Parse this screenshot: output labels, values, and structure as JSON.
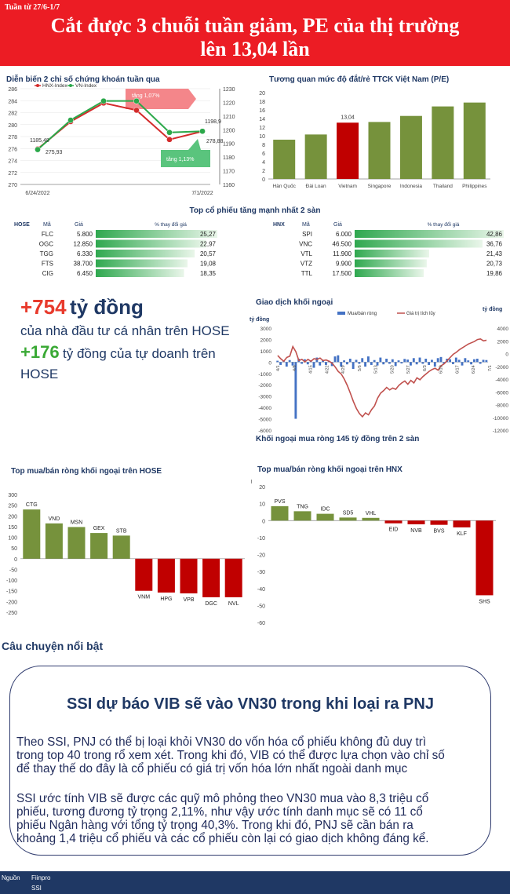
{
  "header": {
    "week": "Tuần từ 27/6-1/7",
    "title_line1": "Cắt được 3 chuỗi tuần giảm, PE của thị trường",
    "title_line2": "lên 13,04 lần"
  },
  "chart_data": [
    {
      "id": "index",
      "type": "line",
      "title": "Diễn biến 2 chỉ số chứng khoán tuần qua",
      "x": [
        "6/24/2022",
        "",
        "",
        "",
        "",
        "7/1/2022"
      ],
      "x_tick_labels": [
        "6/24/2022",
        "7/1/2022"
      ],
      "legend": [
        "HNX-Index",
        "VN-Index"
      ],
      "series": [
        {
          "name": "HNX-Index",
          "axis": "left",
          "color": "#d42b2b",
          "values": [
            275.93,
            280.5,
            283.6,
            282.4,
            277.5,
            278.88
          ]
        },
        {
          "name": "VN-Index",
          "axis": "right",
          "color": "#2ba84a",
          "values": [
            1185.48,
            1207,
            1221,
            1221,
            1198,
            1198.9
          ]
        }
      ],
      "left_ylim": [
        270,
        286
      ],
      "left_ticks": [
        "270",
        "272",
        "274",
        "276",
        "278",
        "280",
        "282",
        "284",
        "286"
      ],
      "right_ylim": [
        1160,
        1230
      ],
      "right_ticks": [
        "1160",
        "1170",
        "1180",
        "1190",
        "1200",
        "1210",
        "1220",
        "1230"
      ],
      "labels": {
        "vn_start": "1185,48",
        "hnx_start": "275,93",
        "vn_end": "1198,9",
        "hnx_end": "278,88"
      },
      "annotations": {
        "hnx": "tăng 1,07%",
        "vn": "tăng 1,13%"
      }
    },
    {
      "id": "pe",
      "type": "bar",
      "title": "Tương quan mức độ đắt/rẻ TTCK Việt Nam (P/E)",
      "categories": [
        "Hàn Quốc",
        "Đài Loan",
        "Vietnam",
        "Singapore",
        "Indonesia",
        "Thailand",
        "Philippines"
      ],
      "values": [
        9.1,
        10.3,
        13.04,
        13.2,
        14.6,
        16.8,
        17.7
      ],
      "highlight": "Vietnam",
      "value_label": "13,04",
      "ylim": [
        0,
        20
      ],
      "ticks": [
        "0",
        "2",
        "4",
        "6",
        "8",
        "10",
        "12",
        "14",
        "16",
        "18",
        "20"
      ],
      "colors": {
        "bar": "#76923c",
        "highlight": "#c00000"
      }
    },
    {
      "id": "foreign",
      "type": "bar",
      "title": "Giao dịch khối ngoại",
      "ylabel": "tỷ đồng",
      "y2label": "tỷ đồng",
      "legend": [
        "Mua/bán ròng",
        "Giá trị tích lũy"
      ],
      "ylim": [
        -6000,
        3000
      ],
      "ticks": [
        "3000",
        "2000",
        "1000",
        "0",
        "-1000",
        "-2000",
        "-3000",
        "-4000",
        "-5000",
        "-6000"
      ],
      "y2lim": [
        -12000,
        4000
      ],
      "ticks2": [
        "4000",
        "2000",
        "0",
        "-2000",
        "-4000",
        "-6000",
        "-8000",
        "-10000",
        "-12000"
      ],
      "date_labels": [
        "4/1",
        "4/8",
        "4/15",
        "4/22",
        "4/29",
        "5/6",
        "5/13",
        "5/20",
        "5/27",
        "6/3",
        "6/10",
        "6/17",
        "6/24",
        "7/1"
      ],
      "net": [
        120,
        -250,
        90,
        -400,
        180,
        -300,
        -5000,
        300,
        -150,
        250,
        -200,
        150,
        -500,
        400,
        -300,
        200,
        -250,
        120,
        -350,
        500,
        600,
        -400,
        150,
        -200,
        300,
        -600,
        200,
        -150,
        350,
        -400,
        500,
        -250,
        180,
        -300,
        400,
        -200,
        300,
        -150,
        250,
        -350,
        150,
        -120,
        280,
        220,
        -300,
        350,
        -200,
        400,
        -150,
        300,
        -250,
        200,
        -400,
        350,
        450,
        -150,
        300,
        250,
        -180,
        400,
        200,
        -300,
        350,
        150,
        -200,
        250,
        300,
        -150,
        200,
        180
      ],
      "cumulative": [
        -300,
        -800,
        -1200,
        -600,
        -400,
        1100,
        300,
        -1100,
        -900,
        -1300,
        -900,
        -1200,
        -800,
        -900,
        -700,
        -1100,
        -1000,
        -1200,
        -1500,
        -2100,
        -2800,
        -3200,
        -4000,
        -5000,
        -6200,
        -7500,
        -8600,
        -9400,
        -9900,
        -9300,
        -9600,
        -8800,
        -8200,
        -7000,
        -6200,
        -5800,
        -5300,
        -5700,
        -5400,
        -5600,
        -5000,
        -4600,
        -4300,
        -4800,
        -4200,
        -4600,
        -3800,
        -4100,
        -3600,
        -3200,
        -2800,
        -2500,
        -2300,
        -2600,
        -1900,
        -1600,
        -1100,
        -600,
        -100,
        200,
        600,
        900,
        1200,
        1500,
        1700,
        1900,
        2200,
        2300,
        2000,
        2100
      ],
      "subtitle": "Khối ngoại mua ròng 145 tỷ đồng trên 2 sàn"
    },
    {
      "id": "hose-foreign",
      "type": "bar",
      "title": "Top mua/bán ròng khối ngoại trên HOSE",
      "categories": [
        "CTG",
        "VND",
        "MSN",
        "GEX",
        "STB",
        "VNM",
        "HPG",
        "VPB",
        "DGC",
        "NVL"
      ],
      "values": [
        230,
        165,
        148,
        120,
        108,
        -150,
        -158,
        -162,
        -180,
        -180
      ],
      "ylim": [
        -250,
        300
      ],
      "ticks": [
        "300",
        "250",
        "200",
        "150",
        "100",
        "50",
        "0",
        "-50",
        "-100",
        "-150",
        "-200",
        "-250"
      ],
      "colors": {
        "positive": "#76923c",
        "negative": "#c00000"
      }
    },
    {
      "id": "hnx-foreign",
      "type": "bar",
      "title": "Top mua/bán ròng khối ngoại trên HNX",
      "ylabel": "tỷ đồng",
      "categories": [
        "PVS",
        "TNG",
        "IDC",
        "SD5",
        "VHL",
        "EID",
        "NVB",
        "BVS",
        "KLF",
        "SHS"
      ],
      "values": [
        8.5,
        5.5,
        4,
        1.8,
        1.6,
        -1.6,
        -2.2,
        -2.5,
        -4,
        -44
      ],
      "ylim": [
        -60,
        20
      ],
      "ticks": [
        "20",
        "10",
        "0",
        "-10",
        "-20",
        "-30",
        "-40",
        "-50",
        "-60"
      ],
      "colors": {
        "positive": "#76923c",
        "negative": "#c00000"
      }
    }
  ],
  "top_stocks": {
    "title": "Top cổ phiếu tăng mạnh nhất 2 sàn",
    "hose": {
      "exchange": "HOSE",
      "headers": [
        "Mã",
        "Giá",
        "% thay đổi giá"
      ],
      "rows": [
        {
          "ticker": "FLC",
          "price": "5.800",
          "pct": "25,27",
          "value": 25.27
        },
        {
          "ticker": "OGC",
          "price": "12.850",
          "pct": "22,97",
          "value": 22.97
        },
        {
          "ticker": "TGG",
          "price": "6.330",
          "pct": "20,57",
          "value": 20.57
        },
        {
          "ticker": "FTS",
          "price": "38.700",
          "pct": "19,08",
          "value": 19.08
        },
        {
          "ticker": "CIG",
          "price": "6.450",
          "pct": "18,35",
          "value": 18.35
        }
      ]
    },
    "hnx": {
      "exchange": "HNX",
      "headers": [
        "Mã",
        "Giá",
        "% thay đổi giá"
      ],
      "rows": [
        {
          "ticker": "SPI",
          "price": "6.000",
          "pct": "42,86",
          "value": 42.86
        },
        {
          "ticker": "VNC",
          "price": "46.500",
          "pct": "36,76",
          "value": 36.76
        },
        {
          "ticker": "VTL",
          "price": "11.900",
          "pct": "21,43",
          "value": 21.43
        },
        {
          "ticker": "VTZ",
          "price": "9.900",
          "pct": "20,73",
          "value": 20.73
        },
        {
          "ticker": "TTL",
          "price": "17.500",
          "pct": "19,86",
          "value": 19.86
        }
      ]
    }
  },
  "highlights": {
    "line1_num": "+754",
    "line1_unit": "tỷ đồng",
    "line1_desc": "của nhà đầu tư cá nhân trên HOSE",
    "line2_num": "+176",
    "line2_desc_a": "tỷ đồng của tự doanh trên",
    "line2_desc_b": "HOSE"
  },
  "stories": {
    "section_title": "Câu chuyện nổi bật",
    "headline": "SSI dự báo VIB sẽ vào VN30 trong khi loại ra PNJ",
    "para1": [
      "Theo SSI, PNJ có thể bị loại khỏi VN30 do vốn hóa cổ phiếu không đủ duy trì",
      "trong top 40 trong rổ xem xét. Trong khi đó, VIB có thể được lựa chọn vào chỉ số",
      "để thay thế do đây là cổ phiếu có giá trị vốn hóa lớn nhất ngoài danh mục"
    ],
    "para2": [
      "SSI ước tính VIB sẽ được các quỹ mô phỏng theo VN30 mua vào 8,3 triệu cổ",
      "phiếu, tương đương tỷ trọng 2,11%, như vậy ước tính danh mục sẽ có 11 cổ",
      "phiếu Ngân hàng với tổng tỷ trọng 40,3%. Trong khi đó, PNJ sẽ cần bán ra",
      "khoảng 1,4 triệu cổ phiếu và các cổ phiếu còn lại có giao dịch không đáng kể."
    ]
  },
  "footer": {
    "source_label": "Nguồn",
    "source_1": "Fiinpro",
    "source_2": "SSI"
  }
}
